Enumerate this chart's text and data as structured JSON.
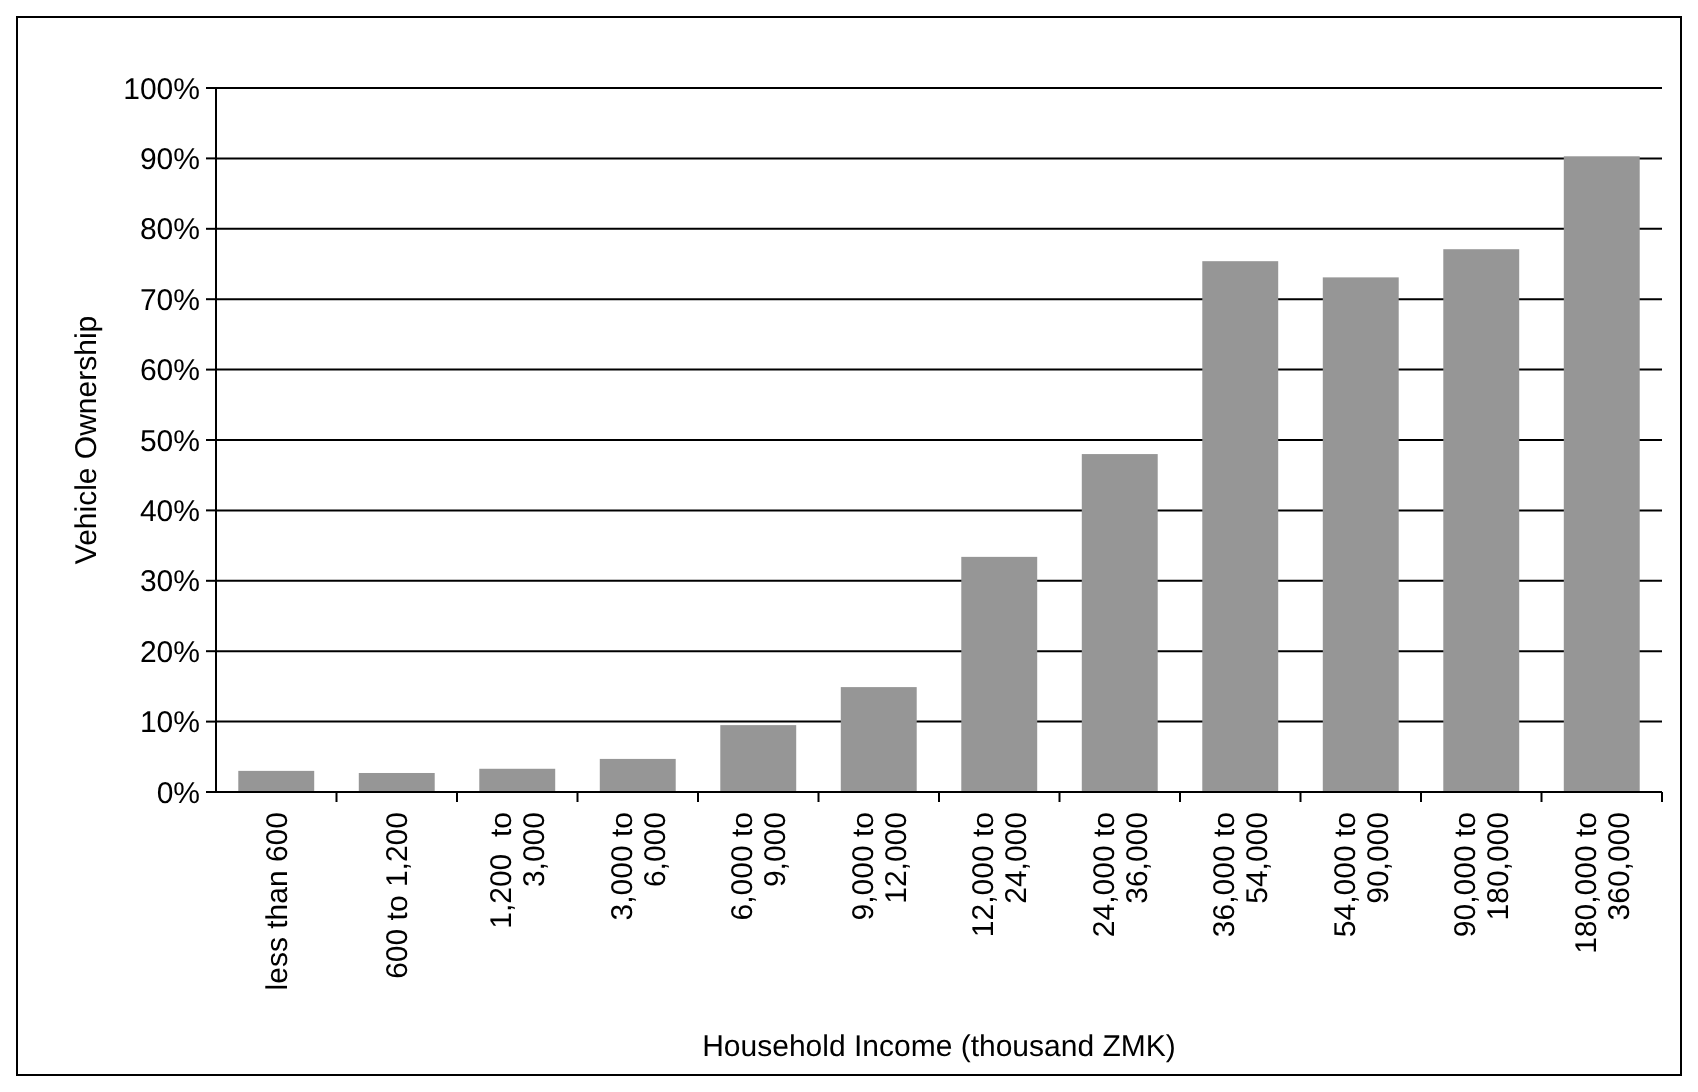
{
  "chart_data": {
    "type": "bar",
    "xlabel": "Household Income (thousand ZMK)",
    "ylabel": "Vehicle Ownership",
    "categories": [
      "less than 600",
      "600 to 1,200",
      "1,200  to\n3,000",
      "3,000 to\n6,000",
      "6,000 to\n9,000",
      "9,000 to\n12,000",
      "12,000 to\n24,000",
      "24,000 to\n36,000",
      "36,000 to\n54,000",
      "54,000 to\n90,000",
      "90,000 to\n180,000",
      "180,000 to\n360,000"
    ],
    "values": [
      3.0,
      2.7,
      3.3,
      4.7,
      9.5,
      14.9,
      33.4,
      48.0,
      75.4,
      73.1,
      77.1,
      90.3
    ],
    "color": "#969696",
    "ylim": [
      0,
      100
    ],
    "yticks": [
      {
        "value": 0,
        "label": "0%"
      },
      {
        "value": 10,
        "label": "10%"
      },
      {
        "value": 20,
        "label": "20%"
      },
      {
        "value": 30,
        "label": "30%"
      },
      {
        "value": 40,
        "label": "40%"
      },
      {
        "value": 50,
        "label": "50%"
      },
      {
        "value": 60,
        "label": "60%"
      },
      {
        "value": 70,
        "label": "70%"
      },
      {
        "value": 80,
        "label": "80%"
      },
      {
        "value": 90,
        "label": "90%"
      },
      {
        "value": 100,
        "label": "100%"
      }
    ],
    "grid": "y"
  }
}
